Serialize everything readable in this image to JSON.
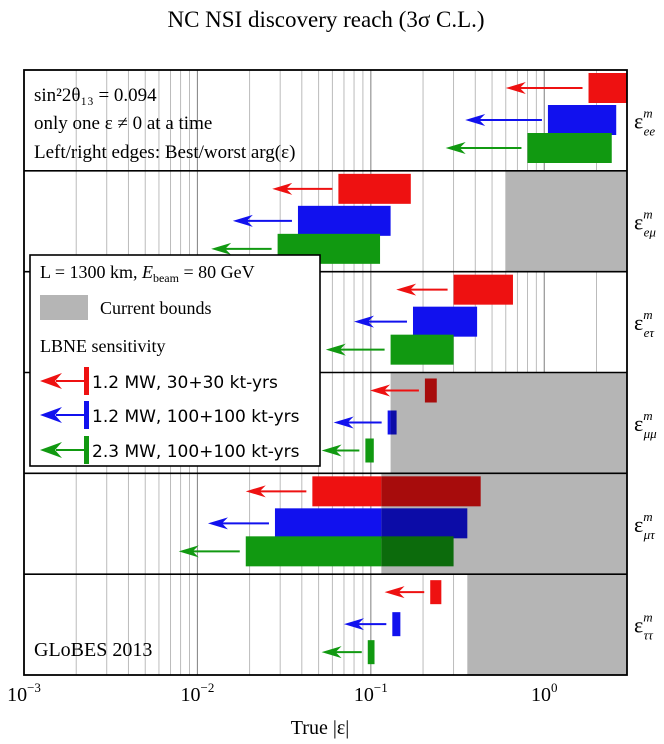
{
  "chart_data": {
    "type": "bar",
    "subtype": "horizontal-range-with-arrows",
    "title": "NC NSI discovery reach (3σ C.L.)",
    "xlabel": "True |ε|",
    "x_scale": "log",
    "xlim": [
      0.001,
      3.0
    ],
    "x_ticks": [
      {
        "value": 0.001,
        "base": "10",
        "exp": "−3"
      },
      {
        "value": 0.01,
        "base": "10",
        "exp": "−2"
      },
      {
        "value": 0.1,
        "base": "10",
        "exp": "−1"
      },
      {
        "value": 1.0,
        "base": "10",
        "exp": "0"
      }
    ],
    "annotations": {
      "theta_line": "sin²2θ₁₃ = 0.094",
      "one_eps_line": "only one ε ≠ 0 at a time",
      "edges_line": "Left/right edges: Best/worst arg(ε)",
      "globes": "GLoBES 2013"
    },
    "legend": {
      "header": "L = 1300 km, E_beam = 80 GeV",
      "header_L": "L = 1300 km, ",
      "header_E": "E",
      "header_E_sub": "beam",
      "header_E_val": " = 80 GeV",
      "current_bounds": "Current bounds",
      "lbne_title": "LBNE sensitivity",
      "placement": "middle-left"
    },
    "series": [
      {
        "name": "1.2 MW, 30+30 kt-yrs",
        "color": "#ee1111"
      },
      {
        "name": "1.2 MW, 100+100 kt-yrs",
        "color": "#1111ee"
      },
      {
        "name": "2.3 MW, 100+100 kt-yrs",
        "color": "#119911"
      }
    ],
    "rows": [
      {
        "label": "ε",
        "sup": "m",
        "sub": "ee",
        "bound": null,
        "bars": [
          {
            "left": 1.8,
            "right": 3.0,
            "arrow_tip": 0.6
          },
          {
            "left": 1.05,
            "right": 2.6,
            "arrow_tip": 0.35
          },
          {
            "left": 0.8,
            "right": 2.45,
            "arrow_tip": 0.27
          }
        ]
      },
      {
        "label": "ε",
        "sup": "m",
        "sub": "eμ",
        "bound": 0.6,
        "bars": [
          {
            "left": 0.065,
            "right": 0.17,
            "arrow_tip": 0.027
          },
          {
            "left": 0.038,
            "right": 0.13,
            "arrow_tip": 0.016
          },
          {
            "left": 0.029,
            "right": 0.113,
            "arrow_tip": 0.012
          }
        ]
      },
      {
        "label": "ε",
        "sup": "m",
        "sub": "eτ",
        "bound": null,
        "bars": [
          {
            "left": 0.3,
            "right": 0.66,
            "arrow_tip": 0.14
          },
          {
            "left": 0.175,
            "right": 0.41,
            "arrow_tip": 0.08
          },
          {
            "left": 0.13,
            "right": 0.3,
            "arrow_tip": 0.055
          }
        ]
      },
      {
        "label": "ε",
        "sup": "m",
        "sub": "μμ",
        "bound": 0.13,
        "bars": [
          {
            "left": 0.205,
            "right": 0.24,
            "arrow_tip": 0.099
          },
          {
            "left": 0.125,
            "right": 0.14,
            "arrow_tip": 0.061
          },
          {
            "left": 0.093,
            "right": 0.104,
            "arrow_tip": 0.052
          }
        ]
      },
      {
        "label": "ε",
        "sup": "m",
        "sub": "μτ",
        "bound": 0.115,
        "bars": [
          {
            "left": 0.046,
            "right": 0.43,
            "arrow_tip": 0.019
          },
          {
            "left": 0.028,
            "right": 0.36,
            "arrow_tip": 0.0115
          },
          {
            "left": 0.019,
            "right": 0.3,
            "arrow_tip": 0.0078
          }
        ]
      },
      {
        "label": "ε",
        "sup": "m",
        "sub": "ττ",
        "bound": 0.36,
        "bars": [
          {
            "left": 0.22,
            "right": 0.255,
            "arrow_tip": 0.12
          },
          {
            "left": 0.133,
            "right": 0.148,
            "arrow_tip": 0.07
          },
          {
            "left": 0.096,
            "right": 0.105,
            "arrow_tip": 0.052
          }
        ]
      }
    ]
  }
}
